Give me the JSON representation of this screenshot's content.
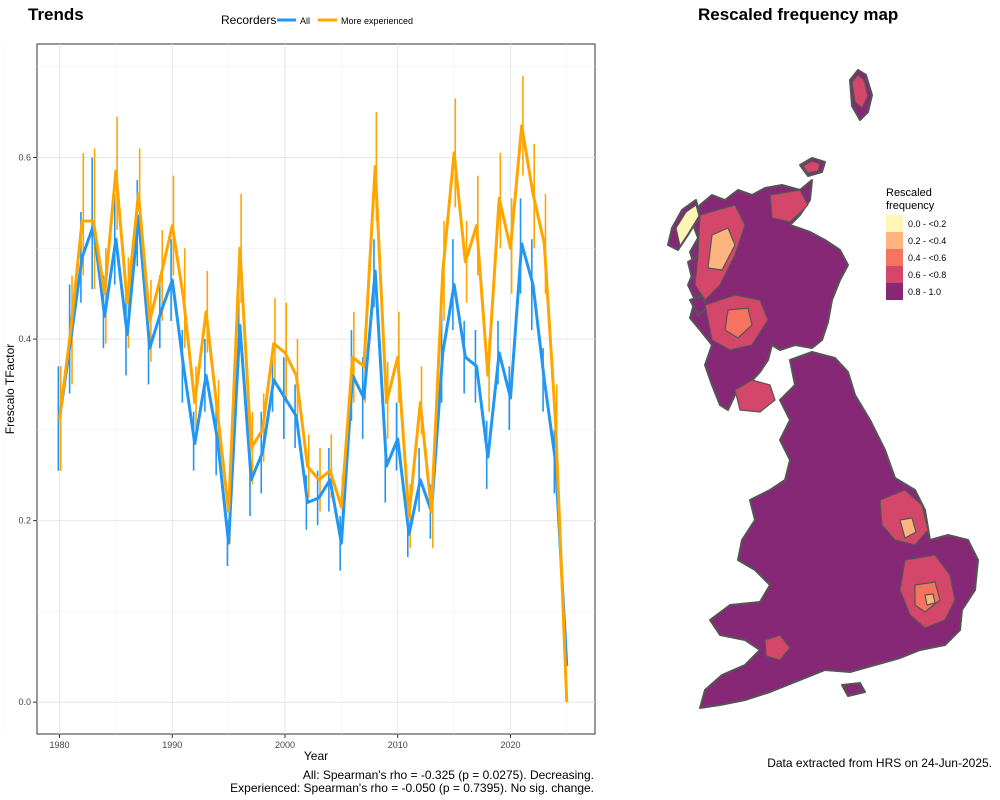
{
  "titles": {
    "trends": "Trends",
    "map": "Rescaled frequency map"
  },
  "chart_data": [
    {
      "type": "line",
      "title": "Trends",
      "xlabel": "Year",
      "ylabel": "Frescalo TFactor",
      "xlim": [
        1978,
        2027.5
      ],
      "ylim": [
        -0.035,
        0.725
      ],
      "x_ticks": [
        1980,
        1990,
        2000,
        2010,
        2020
      ],
      "y_ticks": [
        0.0,
        0.2,
        0.4,
        0.6
      ],
      "y_tick_labels": [
        "0.0",
        "0.2",
        "0.4",
        "0.6"
      ],
      "grid": true,
      "legend_position": "top",
      "legend_title": "Recorders",
      "x": [
        1980,
        1981,
        1982,
        1983,
        1984,
        1985,
        1986,
        1987,
        1988,
        1989,
        1990,
        1991,
        1992,
        1993,
        1994,
        1995,
        1996,
        1997,
        1998,
        1999,
        2000,
        2001,
        2002,
        2003,
        2004,
        2005,
        2006,
        2007,
        2008,
        2009,
        2010,
        2011,
        2012,
        2013,
        2014,
        2015,
        2016,
        2017,
        2018,
        2019,
        2020,
        2021,
        2022,
        2023,
        2024,
        2025
      ],
      "series": [
        {
          "name": "All",
          "color": "#2196F3",
          "values": [
            0.312,
            0.4,
            0.49,
            0.525,
            0.425,
            0.51,
            0.405,
            0.535,
            0.39,
            0.43,
            0.465,
            0.37,
            0.285,
            0.36,
            0.29,
            0.175,
            0.415,
            0.245,
            0.275,
            0.355,
            0.335,
            0.315,
            0.22,
            0.225,
            0.245,
            0.175,
            0.36,
            0.335,
            0.475,
            0.26,
            0.29,
            0.185,
            0.245,
            0.21,
            0.385,
            0.46,
            0.38,
            0.37,
            0.27,
            0.385,
            0.335,
            0.505,
            0.46,
            0.355,
            0.265,
            0.04
          ],
          "err_low": [
            0.255,
            0.34,
            0.44,
            0.455,
            0.39,
            0.46,
            0.36,
            0.48,
            0.35,
            0.39,
            0.42,
            0.33,
            0.255,
            0.32,
            0.25,
            0.15,
            0.37,
            0.205,
            0.23,
            0.32,
            0.29,
            0.28,
            0.19,
            0.195,
            0.21,
            0.145,
            0.31,
            0.29,
            0.435,
            0.22,
            0.255,
            0.16,
            0.21,
            0.18,
            0.33,
            0.41,
            0.34,
            0.33,
            0.235,
            0.35,
            0.3,
            0.45,
            0.41,
            0.32,
            0.23,
            0.025
          ],
          "err_high": [
            0.37,
            0.46,
            0.54,
            0.6,
            0.47,
            0.56,
            0.45,
            0.575,
            0.43,
            0.47,
            0.51,
            0.41,
            0.32,
            0.4,
            0.33,
            0.2,
            0.46,
            0.285,
            0.32,
            0.39,
            0.38,
            0.35,
            0.25,
            0.255,
            0.28,
            0.205,
            0.41,
            0.38,
            0.51,
            0.3,
            0.33,
            0.215,
            0.28,
            0.24,
            0.44,
            0.51,
            0.42,
            0.41,
            0.31,
            0.42,
            0.37,
            0.555,
            0.51,
            0.39,
            0.3,
            0.055
          ]
        },
        {
          "name": "More experienced",
          "color": "#FFA500",
          "values": [
            0.312,
            0.41,
            0.53,
            0.53,
            0.45,
            0.585,
            0.44,
            0.56,
            0.42,
            0.47,
            0.525,
            0.445,
            0.33,
            0.43,
            0.32,
            0.21,
            0.5,
            0.28,
            0.3,
            0.395,
            0.385,
            0.36,
            0.26,
            0.245,
            0.255,
            0.215,
            0.38,
            0.37,
            0.59,
            0.33,
            0.38,
            0.205,
            0.33,
            0.21,
            0.475,
            0.605,
            0.485,
            0.525,
            0.36,
            0.555,
            0.5,
            0.635,
            0.56,
            0.505,
            0.31,
            0.0
          ],
          "err_low": [
            0.255,
            0.35,
            0.47,
            0.455,
            0.395,
            0.52,
            0.39,
            0.51,
            0.375,
            0.42,
            0.47,
            0.39,
            0.29,
            0.385,
            0.28,
            0.175,
            0.44,
            0.24,
            0.265,
            0.35,
            0.33,
            0.315,
            0.225,
            0.21,
            0.225,
            0.185,
            0.33,
            0.33,
            0.53,
            0.29,
            0.33,
            0.17,
            0.295,
            0.17,
            0.42,
            0.545,
            0.44,
            0.47,
            0.32,
            0.5,
            0.45,
            0.58,
            0.5,
            0.45,
            0.27,
            0.0
          ],
          "err_high": [
            0.37,
            0.47,
            0.605,
            0.61,
            0.5,
            0.645,
            0.49,
            0.61,
            0.465,
            0.52,
            0.58,
            0.5,
            0.37,
            0.475,
            0.355,
            0.245,
            0.56,
            0.32,
            0.34,
            0.445,
            0.44,
            0.4,
            0.295,
            0.28,
            0.295,
            0.25,
            0.43,
            0.41,
            0.65,
            0.375,
            0.43,
            0.24,
            0.37,
            0.25,
            0.53,
            0.665,
            0.53,
            0.58,
            0.4,
            0.605,
            0.555,
            0.69,
            0.615,
            0.56,
            0.35,
            0.0
          ]
        }
      ]
    }
  ],
  "stats": {
    "all": "All: Spearman's rho = -0.325 (p = 0.0275). Decreasing.",
    "experienced": "Experienced: Spearman's rho = -0.050 (p = 0.7395). No sig. change."
  },
  "map_legend": {
    "title_line1": "Rescaled",
    "title_line2": "frequency",
    "items": [
      {
        "label": "0.0 - <0.2",
        "color": "#FEF6B5"
      },
      {
        "label": "0.2 - <0.4",
        "color": "#FDB47E"
      },
      {
        "label": "0.4 - <0.6",
        "color": "#F5735F"
      },
      {
        "label": "0.6 - <0.8",
        "color": "#D4476B"
      },
      {
        "label": "0.8 - 1.0",
        "color": "#872877"
      }
    ]
  },
  "map_colors": {
    "outline": "#555555"
  },
  "footer": {
    "note": "Data extracted from HRS on 24-Jun-2025."
  }
}
